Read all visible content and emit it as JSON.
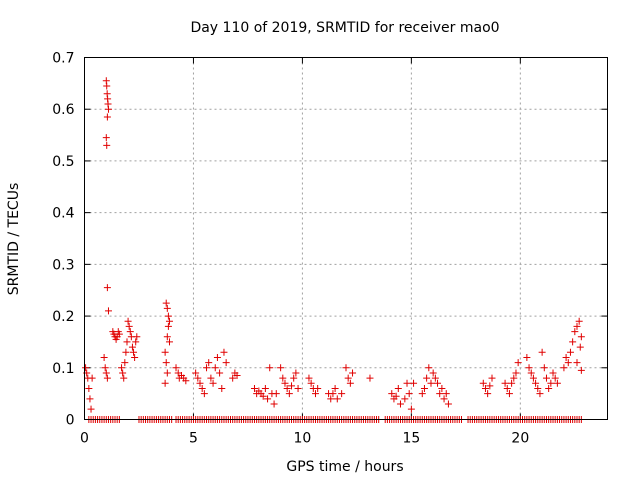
{
  "chart_data": {
    "type": "scatter",
    "title": "Day 110 of 2019, SRMTID for receiver mao0",
    "xlabel": "GPS time / hours",
    "ylabel": "SRMTID / TECUs",
    "xlim": [
      0,
      24
    ],
    "ylim": [
      0,
      0.7
    ],
    "xticks": [
      0,
      5,
      10,
      15,
      20
    ],
    "xtick_labels": [
      "0",
      "5",
      "10",
      "15",
      "20"
    ],
    "yticks": [
      0,
      0.1,
      0.2,
      0.3,
      0.4,
      0.5,
      0.6,
      0.7
    ],
    "ytick_labels": [
      "0",
      "0.1",
      "0.2",
      "0.3",
      "0.4",
      "0.5",
      "0.6",
      "0.7"
    ],
    "grid": true,
    "marker": "+",
    "marker_color": "#e00000",
    "series": [
      {
        "name": "SRMTID",
        "points": [
          [
            0.05,
            0.1
          ],
          [
            0.1,
            0.09
          ],
          [
            0.15,
            0.08
          ],
          [
            0.2,
            0.06
          ],
          [
            0.25,
            0.04
          ],
          [
            0.3,
            0.02
          ],
          [
            0.35,
            0.08
          ],
          [
            0.9,
            0.12
          ],
          [
            0.95,
            0.1
          ],
          [
            1.0,
            0.09
          ],
          [
            1.05,
            0.08
          ],
          [
            1.0,
            0.655
          ],
          [
            1.02,
            0.645
          ],
          [
            1.04,
            0.63
          ],
          [
            1.06,
            0.62
          ],
          [
            1.08,
            0.61
          ],
          [
            1.1,
            0.6
          ],
          [
            1.05,
            0.585
          ],
          [
            1.0,
            0.545
          ],
          [
            1.02,
            0.53
          ],
          [
            1.05,
            0.255
          ],
          [
            1.1,
            0.21
          ],
          [
            1.3,
            0.17
          ],
          [
            1.35,
            0.165
          ],
          [
            1.4,
            0.16
          ],
          [
            1.45,
            0.155
          ],
          [
            1.5,
            0.16
          ],
          [
            1.55,
            0.17
          ],
          [
            1.6,
            0.165
          ],
          [
            1.7,
            0.1
          ],
          [
            1.75,
            0.09
          ],
          [
            1.8,
            0.08
          ],
          [
            1.85,
            0.11
          ],
          [
            1.9,
            0.13
          ],
          [
            1.95,
            0.15
          ],
          [
            2.0,
            0.19
          ],
          [
            2.05,
            0.18
          ],
          [
            2.1,
            0.17
          ],
          [
            2.15,
            0.16
          ],
          [
            2.2,
            0.14
          ],
          [
            2.25,
            0.13
          ],
          [
            2.3,
            0.12
          ],
          [
            2.35,
            0.15
          ],
          [
            2.4,
            0.16
          ],
          [
            3.75,
            0.225
          ],
          [
            3.8,
            0.215
          ],
          [
            3.85,
            0.2
          ],
          [
            3.9,
            0.19
          ],
          [
            3.85,
            0.18
          ],
          [
            3.8,
            0.16
          ],
          [
            3.9,
            0.15
          ],
          [
            3.7,
            0.13
          ],
          [
            3.75,
            0.11
          ],
          [
            3.8,
            0.09
          ],
          [
            3.7,
            0.07
          ],
          [
            4.2,
            0.1
          ],
          [
            4.3,
            0.09
          ],
          [
            4.35,
            0.08
          ],
          [
            4.45,
            0.085
          ],
          [
            4.55,
            0.08
          ],
          [
            4.65,
            0.075
          ],
          [
            5.1,
            0.09
          ],
          [
            5.2,
            0.08
          ],
          [
            5.3,
            0.07
          ],
          [
            5.4,
            0.06
          ],
          [
            5.5,
            0.05
          ],
          [
            5.6,
            0.1
          ],
          [
            5.7,
            0.11
          ],
          [
            5.8,
            0.08
          ],
          [
            5.9,
            0.07
          ],
          [
            6.0,
            0.1
          ],
          [
            6.1,
            0.12
          ],
          [
            6.2,
            0.09
          ],
          [
            6.3,
            0.06
          ],
          [
            6.4,
            0.13
          ],
          [
            6.5,
            0.11
          ],
          [
            6.8,
            0.08
          ],
          [
            6.9,
            0.09
          ],
          [
            7.0,
            0.085
          ],
          [
            7.8,
            0.06
          ],
          [
            7.9,
            0.05
          ],
          [
            8.0,
            0.055
          ],
          [
            8.1,
            0.05
          ],
          [
            8.2,
            0.045
          ],
          [
            8.3,
            0.06
          ],
          [
            8.4,
            0.04
          ],
          [
            8.5,
            0.1
          ],
          [
            8.6,
            0.05
          ],
          [
            8.7,
            0.03
          ],
          [
            8.8,
            0.05
          ],
          [
            9.0,
            0.1
          ],
          [
            9.1,
            0.08
          ],
          [
            9.2,
            0.07
          ],
          [
            9.3,
            0.06
          ],
          [
            9.4,
            0.05
          ],
          [
            9.5,
            0.065
          ],
          [
            9.6,
            0.08
          ],
          [
            9.7,
            0.09
          ],
          [
            9.8,
            0.06
          ],
          [
            10.3,
            0.08
          ],
          [
            10.4,
            0.07
          ],
          [
            10.5,
            0.06
          ],
          [
            10.6,
            0.05
          ],
          [
            10.7,
            0.06
          ],
          [
            11.2,
            0.05
          ],
          [
            11.3,
            0.04
          ],
          [
            11.4,
            0.05
          ],
          [
            11.5,
            0.06
          ],
          [
            11.6,
            0.04
          ],
          [
            11.8,
            0.05
          ],
          [
            12.0,
            0.1
          ],
          [
            12.1,
            0.08
          ],
          [
            12.2,
            0.07
          ],
          [
            12.3,
            0.09
          ],
          [
            13.1,
            0.08
          ],
          [
            14.1,
            0.05
          ],
          [
            14.2,
            0.04
          ],
          [
            14.3,
            0.045
          ],
          [
            14.4,
            0.06
          ],
          [
            14.5,
            0.03
          ],
          [
            14.7,
            0.04
          ],
          [
            14.8,
            0.07
          ],
          [
            14.9,
            0.05
          ],
          [
            15.0,
            0.02
          ],
          [
            15.1,
            0.07
          ],
          [
            15.5,
            0.05
          ],
          [
            15.6,
            0.06
          ],
          [
            15.7,
            0.08
          ],
          [
            15.8,
            0.1
          ],
          [
            15.9,
            0.07
          ],
          [
            16.0,
            0.09
          ],
          [
            16.1,
            0.08
          ],
          [
            16.2,
            0.07
          ],
          [
            16.3,
            0.05
          ],
          [
            16.4,
            0.06
          ],
          [
            16.5,
            0.04
          ],
          [
            16.6,
            0.05
          ],
          [
            16.7,
            0.03
          ],
          [
            18.3,
            0.07
          ],
          [
            18.4,
            0.06
          ],
          [
            18.5,
            0.05
          ],
          [
            18.6,
            0.065
          ],
          [
            18.7,
            0.08
          ],
          [
            19.3,
            0.07
          ],
          [
            19.4,
            0.06
          ],
          [
            19.5,
            0.05
          ],
          [
            19.6,
            0.07
          ],
          [
            19.7,
            0.08
          ],
          [
            19.8,
            0.09
          ],
          [
            19.9,
            0.11
          ],
          [
            20.3,
            0.12
          ],
          [
            20.4,
            0.1
          ],
          [
            20.5,
            0.09
          ],
          [
            20.6,
            0.08
          ],
          [
            20.7,
            0.07
          ],
          [
            20.8,
            0.06
          ],
          [
            20.9,
            0.05
          ],
          [
            21.0,
            0.13
          ],
          [
            21.1,
            0.1
          ],
          [
            21.2,
            0.08
          ],
          [
            21.3,
            0.06
          ],
          [
            21.4,
            0.07
          ],
          [
            21.5,
            0.09
          ],
          [
            21.6,
            0.08
          ],
          [
            21.7,
            0.07
          ],
          [
            22.0,
            0.1
          ],
          [
            22.1,
            0.12
          ],
          [
            22.2,
            0.11
          ],
          [
            22.3,
            0.13
          ],
          [
            22.4,
            0.15
          ],
          [
            22.5,
            0.17
          ],
          [
            22.6,
            0.18
          ],
          [
            22.7,
            0.19
          ],
          [
            22.8,
            0.16
          ],
          [
            22.75,
            0.14
          ],
          [
            22.6,
            0.11
          ],
          [
            22.8,
            0.095
          ]
        ],
        "zero_ranges": [
          [
            0.2,
            1.6
          ],
          [
            2.5,
            4.0
          ],
          [
            4.2,
            13.5
          ],
          [
            13.8,
            17.3
          ],
          [
            17.6,
            22.8
          ]
        ]
      }
    ]
  }
}
